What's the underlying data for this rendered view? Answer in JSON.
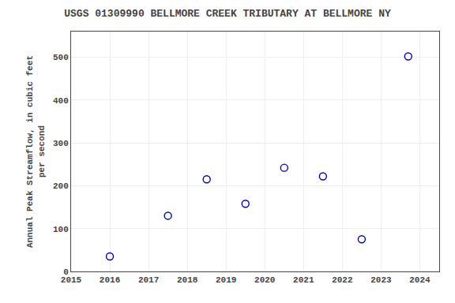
{
  "chart_data": {
    "type": "scatter",
    "title": "USGS 01309990 BELLMORE CREEK TRIBUTARY AT BELLMORE NY",
    "y_label": "Annual Peak Streamflow, in cubic feet\nper second",
    "x": [
      2016,
      2017.5,
      2018.5,
      2019.5,
      2020.5,
      2021.5,
      2022.5,
      2023.7
    ],
    "values": [
      35,
      130,
      215,
      158,
      242,
      222,
      75,
      502
    ],
    "color": "#0000cc",
    "marker": "circle-open",
    "xlim": [
      2015,
      2024.5
    ],
    "xticks": [
      2015,
      2016,
      2017,
      2018,
      2019,
      2020,
      2021,
      2022,
      2023,
      2024
    ],
    "ylim": [
      0,
      560
    ],
    "yticks": [
      0,
      100,
      200,
      300,
      400,
      500
    ],
    "grid": true
  }
}
